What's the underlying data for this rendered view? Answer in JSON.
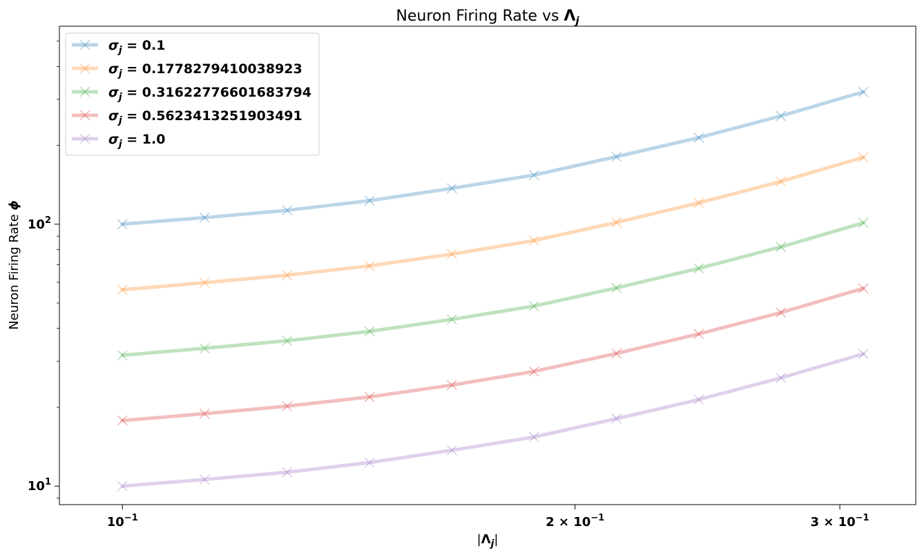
{
  "chart_data": {
    "type": "line",
    "title_text": "Neuron Firing Rate vs ",
    "title_symbol": "Λ",
    "title_sub": "j",
    "xlabel_symbol": "Λ",
    "xlabel_sub": "j",
    "ylabel_text": "Neuron Firing Rate ",
    "ylabel_symbol": "ϕ",
    "x_scale": "log",
    "y_scale": "log",
    "xlim": [
      0.0908,
      0.337
    ],
    "ylim": [
      8.5,
      570
    ],
    "x_ticks": [
      {
        "value": 0.1,
        "mantissa": "",
        "base": "10",
        "exp": "−1"
      },
      {
        "value": 0.2,
        "mantissa": "2 × ",
        "base": "10",
        "exp": "−1"
      },
      {
        "value": 0.3,
        "mantissa": "3 × ",
        "base": "10",
        "exp": "−1"
      }
    ],
    "y_ticks": [
      {
        "value": 10,
        "base": "10",
        "exp": "1"
      },
      {
        "value": 100,
        "base": "10",
        "exp": "2"
      }
    ],
    "grid": false,
    "legend_position": "top-left",
    "x": [
      0.1,
      0.1134,
      0.1287,
      0.146,
      0.1656,
      0.1878,
      0.2131,
      0.2417,
      0.2741,
      0.311
    ],
    "series": [
      {
        "name_prefix": "σ",
        "name_sub": "j",
        "name_value": "= 0.1",
        "color": "#1f77b4",
        "values": [
          100,
          106,
          113,
          123,
          137,
          154,
          181,
          214,
          259,
          320
        ]
      },
      {
        "name_prefix": "σ",
        "name_sub": "j",
        "name_value": "= 0.1778279410038923",
        "color": "#ff7f0e",
        "values": [
          56.2,
          59.8,
          63.9,
          69.3,
          76.9,
          86.6,
          101.6,
          120.6,
          145.6,
          180
        ]
      },
      {
        "name_prefix": "σ",
        "name_sub": "j",
        "name_value": "= 0.31622776601683794",
        "color": "#2ca02c",
        "values": [
          31.6,
          33.6,
          35.9,
          39.0,
          43.3,
          48.7,
          57.1,
          67.8,
          81.9,
          101.2
        ]
      },
      {
        "name_prefix": "σ",
        "name_sub": "j",
        "name_value": "= 0.5623413251903491",
        "color": "#d62728",
        "values": [
          17.8,
          18.9,
          20.2,
          21.9,
          24.3,
          27.4,
          32.1,
          38.1,
          46.0,
          56.9
        ]
      },
      {
        "name_prefix": "σ",
        "name_sub": "j",
        "name_value": "= 1.0",
        "color": "#9467bd",
        "values": [
          10.0,
          10.6,
          11.3,
          12.3,
          13.7,
          15.4,
          18.1,
          21.4,
          25.9,
          32.0
        ]
      }
    ]
  }
}
